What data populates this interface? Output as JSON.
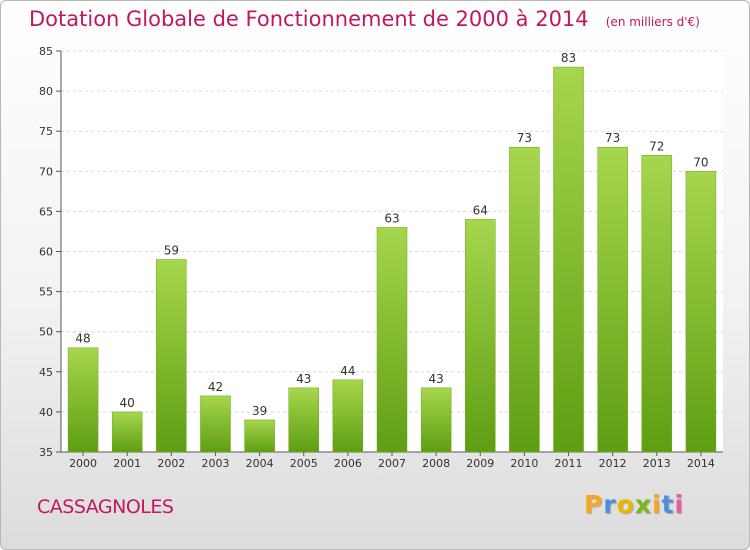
{
  "title": "Dotation Globale de Fonctionnement de 2000 à 2014",
  "unit_note": "(en milliers d'€)",
  "location": "CASSAGNOLES",
  "logo": {
    "letters": [
      "P",
      "r",
      "o",
      "x",
      "i",
      "t",
      "i"
    ],
    "colors": [
      "#f5a623",
      "#4a90d9",
      "#e8b800",
      "#7cb518",
      "#f5a623",
      "#4a90d9",
      "#e85d9c"
    ]
  },
  "chart_data": {
    "type": "bar",
    "title": "Dotation Globale de Fonctionnement de 2000 à 2014",
    "xlabel": "",
    "ylabel": "",
    "categories": [
      "2000",
      "2001",
      "2002",
      "2003",
      "2004",
      "2005",
      "2006",
      "2007",
      "2008",
      "2009",
      "2010",
      "2011",
      "2012",
      "2013",
      "2014"
    ],
    "values": [
      48,
      40,
      59,
      42,
      39,
      43,
      44,
      63,
      43,
      64,
      73,
      83,
      73,
      72,
      70
    ],
    "ylim": [
      35,
      85
    ],
    "yticks": [
      35,
      40,
      45,
      50,
      55,
      60,
      65,
      70,
      75,
      80,
      85
    ],
    "grid": true,
    "bar_color": "#7cb518"
  }
}
